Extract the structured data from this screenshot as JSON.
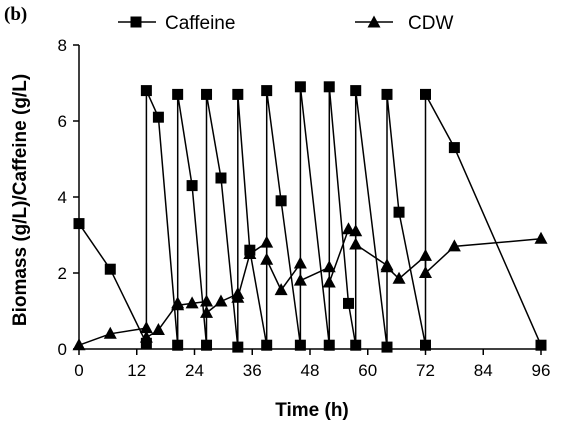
{
  "chart_data": {
    "type": "line",
    "panel_label": "(b)",
    "xlabel": "Time (h)",
    "ylabel": "Biomass (g/L)/Caffeine (g/L)",
    "xlim": [
      0,
      96
    ],
    "ylim": [
      0,
      8
    ],
    "x_ticks": [
      0,
      12,
      24,
      36,
      48,
      60,
      72,
      84,
      96
    ],
    "y_ticks": [
      0,
      2,
      4,
      6,
      8
    ],
    "legend_position": "top",
    "grid": false,
    "series": [
      {
        "name": "Caffeine",
        "marker": "square",
        "color": "#000000",
        "x": [
          0,
          6.5,
          14,
          14,
          16.5,
          20.5,
          20.5,
          23.5,
          26.5,
          26.5,
          29.5,
          33,
          33,
          35.5,
          39,
          39,
          42,
          46,
          46,
          52,
          52,
          56,
          57.5,
          57.5,
          64,
          64,
          66.5,
          72,
          72,
          78,
          96
        ],
        "y": [
          3.3,
          2.1,
          0.15,
          6.8,
          6.1,
          0.1,
          6.7,
          4.3,
          0.1,
          6.7,
          4.5,
          0.05,
          6.7,
          2.6,
          0.1,
          6.8,
          3.9,
          0.1,
          6.9,
          0.1,
          6.9,
          1.2,
          0.1,
          6.8,
          0.05,
          6.7,
          3.6,
          0.1,
          6.7,
          5.3,
          0.1
        ]
      },
      {
        "name": "CDW",
        "marker": "triangle",
        "color": "#000000",
        "x": [
          0,
          6.5,
          14,
          14,
          16.5,
          20.5,
          20.5,
          23.5,
          26.5,
          26.5,
          29.5,
          33,
          33,
          35.5,
          39,
          39,
          42,
          46,
          46,
          52,
          52,
          56,
          57.5,
          57.5,
          64,
          64,
          66.5,
          72,
          72,
          78,
          96
        ],
        "y": [
          0.1,
          0.4,
          0.55,
          0.3,
          0.5,
          1.2,
          1.15,
          1.2,
          1.25,
          0.95,
          1.25,
          1.45,
          1.35,
          2.5,
          2.8,
          2.35,
          1.55,
          2.25,
          1.8,
          2.15,
          1.75,
          3.15,
          3.1,
          2.75,
          2.2,
          2.15,
          1.85,
          2.45,
          2.0,
          2.7,
          2.9
        ]
      }
    ]
  }
}
